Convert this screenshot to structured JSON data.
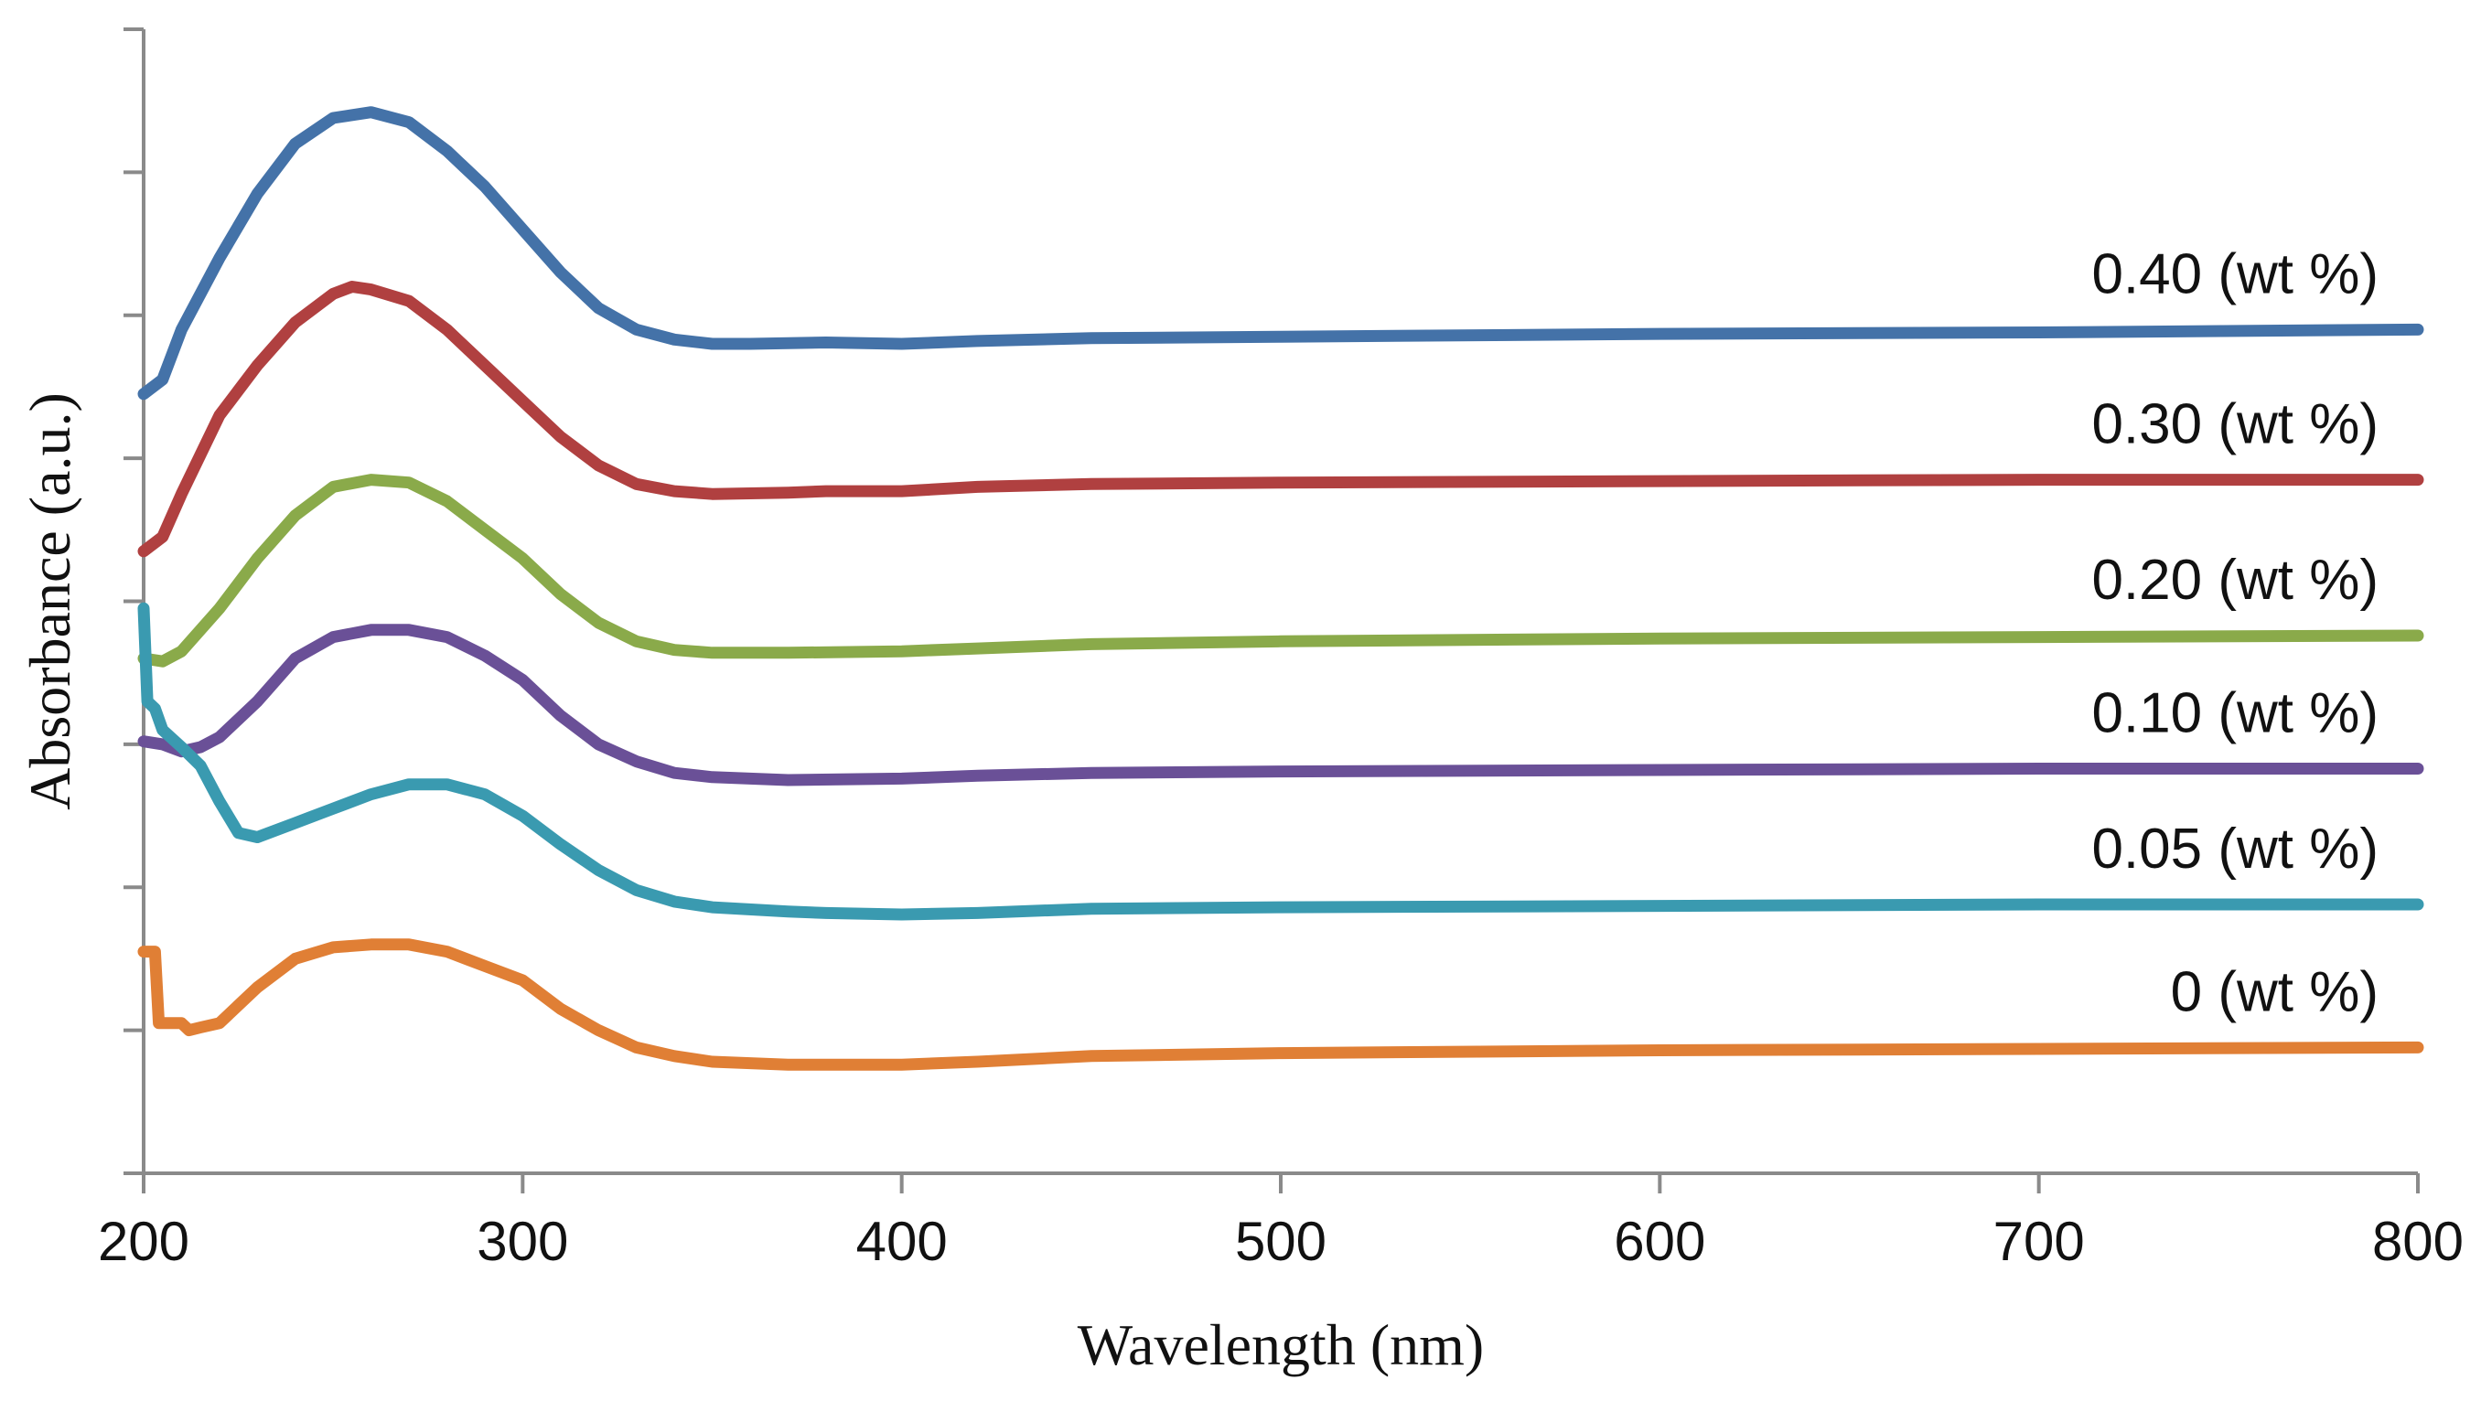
{
  "chart_data": {
    "type": "line",
    "title": "",
    "xlabel": "Wavelength (nm)",
    "ylabel": "Absorbance (a.u.)",
    "xlim": [
      200,
      800
    ],
    "ylim": [
      0,
      8
    ],
    "x_ticks": [
      200,
      300,
      400,
      500,
      600,
      700,
      800
    ],
    "y_tick_labels_shown": false,
    "y_tick_count": 9,
    "grid": false,
    "legend": "labels at right end of each curve",
    "series": [
      {
        "name": "0.40 (wt %)",
        "color": "#4472A8",
        "points": [
          [
            200,
            5.45
          ],
          [
            205,
            5.55
          ],
          [
            210,
            5.9
          ],
          [
            220,
            6.4
          ],
          [
            230,
            6.85
          ],
          [
            240,
            7.2
          ],
          [
            250,
            7.38
          ],
          [
            260,
            7.42
          ],
          [
            270,
            7.35
          ],
          [
            280,
            7.15
          ],
          [
            290,
            6.9
          ],
          [
            300,
            6.6
          ],
          [
            310,
            6.3
          ],
          [
            320,
            6.05
          ],
          [
            330,
            5.9
          ],
          [
            340,
            5.83
          ],
          [
            350,
            5.8
          ],
          [
            360,
            5.8
          ],
          [
            380,
            5.81
          ],
          [
            400,
            5.8
          ],
          [
            420,
            5.82
          ],
          [
            450,
            5.84
          ],
          [
            500,
            5.85
          ],
          [
            600,
            5.87
          ],
          [
            700,
            5.88
          ],
          [
            800,
            5.9
          ]
        ]
      },
      {
        "name": "0.30 (wt %)",
        "color": "#B04040",
        "points": [
          [
            200,
            4.35
          ],
          [
            205,
            4.45
          ],
          [
            210,
            4.75
          ],
          [
            220,
            5.3
          ],
          [
            230,
            5.65
          ],
          [
            240,
            5.95
          ],
          [
            250,
            6.15
          ],
          [
            255,
            6.2
          ],
          [
            260,
            6.18
          ],
          [
            270,
            6.1
          ],
          [
            280,
            5.9
          ],
          [
            290,
            5.65
          ],
          [
            300,
            5.4
          ],
          [
            310,
            5.15
          ],
          [
            320,
            4.95
          ],
          [
            330,
            4.82
          ],
          [
            340,
            4.77
          ],
          [
            350,
            4.75
          ],
          [
            370,
            4.76
          ],
          [
            380,
            4.77
          ],
          [
            400,
            4.77
          ],
          [
            420,
            4.8
          ],
          [
            450,
            4.82
          ],
          [
            500,
            4.83
          ],
          [
            600,
            4.84
          ],
          [
            700,
            4.85
          ],
          [
            800,
            4.85
          ]
        ]
      },
      {
        "name": "0.20 (wt %)",
        "color": "#8AAA4A",
        "points": [
          [
            200,
            3.6
          ],
          [
            205,
            3.58
          ],
          [
            210,
            3.65
          ],
          [
            220,
            3.95
          ],
          [
            230,
            4.3
          ],
          [
            240,
            4.6
          ],
          [
            250,
            4.8
          ],
          [
            260,
            4.85
          ],
          [
            270,
            4.83
          ],
          [
            280,
            4.7
          ],
          [
            290,
            4.5
          ],
          [
            300,
            4.3
          ],
          [
            310,
            4.05
          ],
          [
            320,
            3.85
          ],
          [
            330,
            3.72
          ],
          [
            340,
            3.66
          ],
          [
            350,
            3.64
          ],
          [
            370,
            3.64
          ],
          [
            400,
            3.65
          ],
          [
            420,
            3.67
          ],
          [
            450,
            3.7
          ],
          [
            500,
            3.72
          ],
          [
            600,
            3.74
          ],
          [
            700,
            3.75
          ],
          [
            800,
            3.76
          ]
        ]
      },
      {
        "name": "0.10 (wt %)",
        "color": "#6A5097",
        "points": [
          [
            200,
            3.02
          ],
          [
            205,
            3.0
          ],
          [
            210,
            2.95
          ],
          [
            215,
            2.98
          ],
          [
            220,
            3.05
          ],
          [
            230,
            3.3
          ],
          [
            240,
            3.6
          ],
          [
            250,
            3.75
          ],
          [
            260,
            3.8
          ],
          [
            270,
            3.8
          ],
          [
            280,
            3.75
          ],
          [
            290,
            3.62
          ],
          [
            300,
            3.45
          ],
          [
            310,
            3.2
          ],
          [
            320,
            3.0
          ],
          [
            330,
            2.88
          ],
          [
            340,
            2.8
          ],
          [
            350,
            2.77
          ],
          [
            370,
            2.75
          ],
          [
            400,
            2.76
          ],
          [
            420,
            2.78
          ],
          [
            450,
            2.8
          ],
          [
            500,
            2.81
          ],
          [
            600,
            2.82
          ],
          [
            700,
            2.83
          ],
          [
            800,
            2.83
          ]
        ]
      },
      {
        "name": "0.05 (wt %)",
        "color": "#3A9AB0",
        "points": [
          [
            200,
            3.95
          ],
          [
            201,
            3.3
          ],
          [
            203,
            3.25
          ],
          [
            205,
            3.1
          ],
          [
            210,
            2.98
          ],
          [
            215,
            2.85
          ],
          [
            220,
            2.6
          ],
          [
            225,
            2.38
          ],
          [
            230,
            2.35
          ],
          [
            240,
            2.45
          ],
          [
            250,
            2.55
          ],
          [
            260,
            2.65
          ],
          [
            270,
            2.72
          ],
          [
            280,
            2.72
          ],
          [
            290,
            2.65
          ],
          [
            300,
            2.5
          ],
          [
            310,
            2.3
          ],
          [
            320,
            2.12
          ],
          [
            330,
            1.98
          ],
          [
            340,
            1.9
          ],
          [
            350,
            1.86
          ],
          [
            370,
            1.83
          ],
          [
            380,
            1.82
          ],
          [
            400,
            1.81
          ],
          [
            420,
            1.82
          ],
          [
            450,
            1.85
          ],
          [
            500,
            1.86
          ],
          [
            600,
            1.87
          ],
          [
            700,
            1.88
          ],
          [
            800,
            1.88
          ]
        ]
      },
      {
        "name": "0 (wt %)",
        "color": "#E07F35",
        "points": [
          [
            200,
            1.55
          ],
          [
            203,
            1.55
          ],
          [
            204,
            1.05
          ],
          [
            210,
            1.05
          ],
          [
            212,
            1.0
          ],
          [
            215,
            1.02
          ],
          [
            220,
            1.05
          ],
          [
            230,
            1.3
          ],
          [
            240,
            1.5
          ],
          [
            250,
            1.58
          ],
          [
            260,
            1.6
          ],
          [
            270,
            1.6
          ],
          [
            280,
            1.55
          ],
          [
            290,
            1.45
          ],
          [
            300,
            1.35
          ],
          [
            310,
            1.15
          ],
          [
            320,
            1.0
          ],
          [
            330,
            0.88
          ],
          [
            340,
            0.82
          ],
          [
            350,
            0.78
          ],
          [
            370,
            0.76
          ],
          [
            400,
            0.76
          ],
          [
            420,
            0.78
          ],
          [
            450,
            0.82
          ],
          [
            500,
            0.84
          ],
          [
            600,
            0.86
          ],
          [
            700,
            0.87
          ],
          [
            800,
            0.88
          ]
        ]
      }
    ]
  }
}
